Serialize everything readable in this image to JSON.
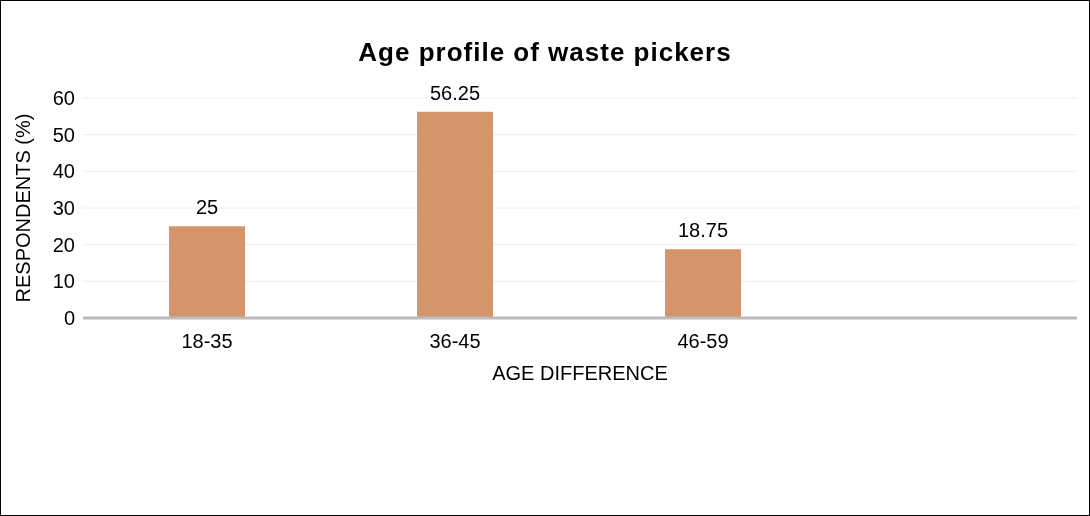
{
  "chart_data": {
    "type": "bar",
    "title": "Age profile of waste pickers",
    "xlabel": "AGE DIFFERENCE",
    "ylabel": "RESPONDENTS (%)",
    "categories": [
      "18-35",
      "36-45",
      "46-59"
    ],
    "values": [
      25,
      56.25,
      18.75
    ],
    "color": "#d4956a",
    "ylim": [
      0,
      60
    ],
    "yticks": [
      0,
      10,
      20,
      30,
      40,
      50,
      60
    ],
    "grid": "y",
    "data_labels": true,
    "legend": false
  }
}
